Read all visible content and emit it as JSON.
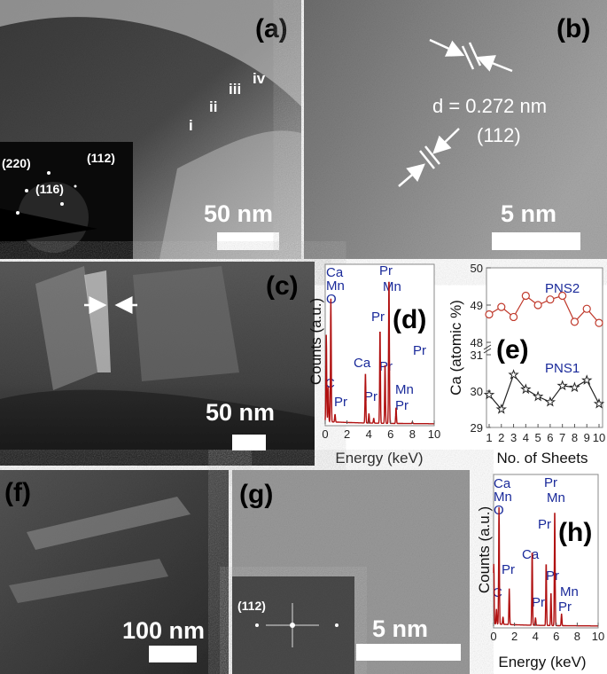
{
  "panels": {
    "a": {
      "label": "(a)",
      "regions": [
        "i",
        "ii",
        "iii",
        "iv"
      ],
      "inset_spots": [
        "(220)",
        "(112)",
        "(116)"
      ],
      "scale_bar": "50 nm"
    },
    "b": {
      "label": "(b)",
      "d_spacing": "d = 0.272 nm",
      "plane": "(112)",
      "scale_bar": "5 nm"
    },
    "c": {
      "label": "(c)",
      "scale_bar": "50 nm"
    },
    "f": {
      "label": "(f)",
      "scale_bar": "100 nm"
    },
    "g": {
      "label": "(g)",
      "inset_plane": "(112)",
      "scale_bar": "5 nm"
    }
  },
  "chart_data": [
    {
      "panel": "(d)",
      "type": "line",
      "xlabel": "Energy (keV)",
      "ylabel": "Counts (a.u.)",
      "xlim": [
        0,
        10
      ],
      "xticks": [
        "0",
        "2",
        "4",
        "6",
        "8",
        "10"
      ],
      "color": "#b01010",
      "peaks": [
        [
          0.1,
          0.55
        ],
        [
          0.28,
          0.22
        ],
        [
          0.52,
          0.78
        ],
        [
          0.9,
          0.05
        ],
        [
          3.69,
          0.32
        ],
        [
          4.01,
          0.06
        ],
        [
          4.45,
          0.03
        ],
        [
          5.03,
          0.6
        ],
        [
          5.49,
          0.38
        ],
        [
          5.85,
          0.93
        ],
        [
          6.5,
          0.1
        ],
        [
          8.0,
          0.01
        ]
      ],
      "peak_labels": [
        "Ca",
        "Mn",
        "O",
        "C",
        "Pr",
        "Ca",
        "Pr",
        "Pr",
        "Pr",
        "Mn",
        "Pr",
        "Pr",
        "Mn",
        "Pr"
      ]
    },
    {
      "panel": "(e)",
      "type": "line",
      "xlabel": "No. of Sheets",
      "ylabel": "Ca (atomic %)",
      "x": [
        1,
        2,
        3,
        4,
        5,
        6,
        7,
        8,
        9,
        10
      ],
      "xticks": [
        "1",
        "2",
        "3",
        "4",
        "5",
        "6",
        "7",
        "8",
        "9",
        "10"
      ],
      "y_broken": true,
      "ylim_upper": [
        48,
        50
      ],
      "ylim_lower": [
        29,
        31
      ],
      "yticks": [
        "29",
        "30",
        "31",
        "48",
        "49",
        "50"
      ],
      "series": [
        {
          "name": "PNS2",
          "marker": "circle",
          "color": "#c0392b",
          "values": [
            48.75,
            48.95,
            48.68,
            49.25,
            49.0,
            49.15,
            49.25,
            48.55,
            48.9,
            48.52
          ]
        },
        {
          "name": "PNS1",
          "marker": "star",
          "color": "#222222",
          "values": [
            29.9,
            29.5,
            30.45,
            30.05,
            29.85,
            29.7,
            30.15,
            30.1,
            30.3,
            29.65
          ]
        }
      ]
    },
    {
      "panel": "(h)",
      "type": "line",
      "xlabel": "Energy (keV)",
      "ylabel": "Counts (a.u.)",
      "xlim": [
        0,
        10
      ],
      "xticks": [
        "0",
        "2",
        "4",
        "6",
        "8",
        "10"
      ],
      "color": "#b01010",
      "peaks": [
        [
          0.02,
          0.4
        ],
        [
          0.28,
          0.1
        ],
        [
          0.52,
          0.78
        ],
        [
          0.9,
          0.05
        ],
        [
          1.5,
          0.24
        ],
        [
          3.69,
          0.5
        ],
        [
          4.01,
          0.05
        ],
        [
          5.03,
          0.42
        ],
        [
          5.49,
          0.22
        ],
        [
          5.85,
          0.78
        ],
        [
          6.5,
          0.08
        ]
      ],
      "peak_labels": [
        "Ca",
        "Mn",
        "O",
        "Pr",
        "C",
        "Ca",
        "Pr",
        "Pr",
        "Pr",
        "Mn",
        "Pr",
        "Mn",
        "Pr"
      ]
    }
  ]
}
